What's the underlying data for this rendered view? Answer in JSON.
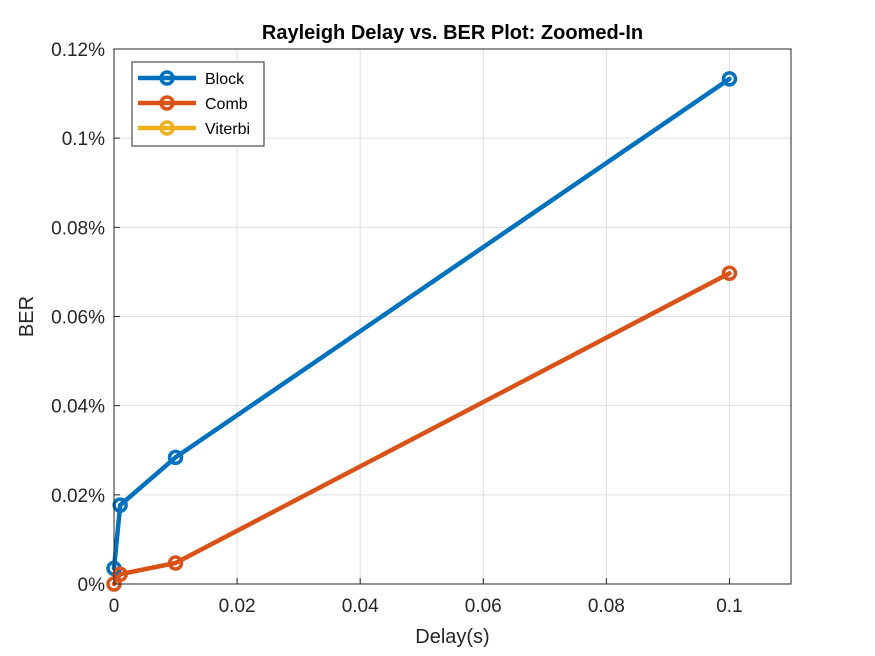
{
  "chart_data": {
    "type": "line",
    "title": "Rayleigh Delay vs. BER Plot: Zoomed-In",
    "xlabel": "Delay(s)",
    "ylabel": "BER",
    "xlim": [
      0,
      0.11
    ],
    "ylim": [
      0,
      0.0012
    ],
    "xticks": [
      0,
      0.02,
      0.04,
      0.06,
      0.08,
      0.1
    ],
    "xtick_labels": [
      "0",
      "0.02",
      "0.04",
      "0.06",
      "0.08",
      "0.1"
    ],
    "yticks": [
      0,
      0.0002,
      0.0004,
      0.0006,
      0.0008,
      0.001,
      0.0012
    ],
    "ytick_labels": [
      "0%",
      "0.02%",
      "0.04%",
      "0.06%",
      "0.08%",
      "0.1%",
      "0.12%"
    ],
    "grid": true,
    "legend_position": "top-left",
    "series": [
      {
        "name": "Block",
        "color": "#0072BD",
        "x": [
          0,
          0.001,
          0.01,
          0.1
        ],
        "y": [
          3.5e-05,
          0.000177,
          0.000284,
          0.001133
        ]
      },
      {
        "name": "Comb",
        "color": "#D95319",
        "x": [
          0,
          0.001,
          0.01,
          0.1
        ],
        "y": [
          0.0,
          2.2e-05,
          4.7e-05,
          0.000697
        ]
      },
      {
        "name": "Viterbi",
        "color": "#EDB120",
        "x": [],
        "y": []
      }
    ]
  }
}
